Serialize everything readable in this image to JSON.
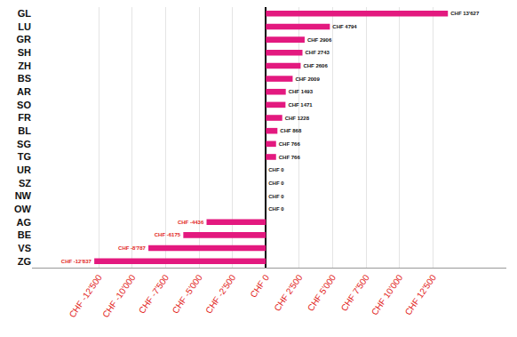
{
  "chart_data": {
    "type": "bar",
    "orientation": "horizontal",
    "categories": [
      "GL",
      "LU",
      "GR",
      "SH",
      "ZH",
      "BS",
      "AR",
      "SO",
      "FR",
      "BL",
      "SG",
      "TG",
      "UR",
      "SZ",
      "NW",
      "OW",
      "AG",
      "BE",
      "VS",
      "ZG"
    ],
    "values": [
      13627,
      4794,
      2906,
      2743,
      2606,
      2009,
      1493,
      1471,
      1228,
      868,
      766,
      766,
      0,
      0,
      0,
      0,
      -4436,
      -6175,
      -8787,
      -12837
    ],
    "value_labels": [
      "CHF 13'627",
      "CHF 4794",
      "CHF 2906",
      "CHF 2743",
      "CHF 2606",
      "CHF 2009",
      "CHF 1493",
      "CHF 1471",
      "CHF 1228",
      "CHF 868",
      "CHF 766",
      "CHF 766",
      "CHF 0",
      "CHF 0",
      "CHF 0",
      "CHF 0",
      "CHF -4436",
      "CHF -6175",
      "CHF -8'787",
      "CHF -12'837"
    ],
    "color": "#e3197f",
    "data_labels": true,
    "grid": true,
    "xlim": [
      -17500,
      18000
    ],
    "xticks": [
      {
        "value": -12500,
        "label": "CHF -12'500"
      },
      {
        "value": -10000,
        "label": "CHF -10'000"
      },
      {
        "value": -7500,
        "label": "CHF -7'500"
      },
      {
        "value": -5000,
        "label": "CHF -5'000"
      },
      {
        "value": -2500,
        "label": "CHF -2'500"
      },
      {
        "value": 0,
        "label": "CHF 0"
      },
      {
        "value": 2500,
        "label": "CHF 2'500"
      },
      {
        "value": 5000,
        "label": "CHF 5'000"
      },
      {
        "value": 7500,
        "label": "CHF 7'500"
      },
      {
        "value": 10000,
        "label": "CHF 10'000"
      },
      {
        "value": 12500,
        "label": "CHF 12'500"
      }
    ]
  }
}
